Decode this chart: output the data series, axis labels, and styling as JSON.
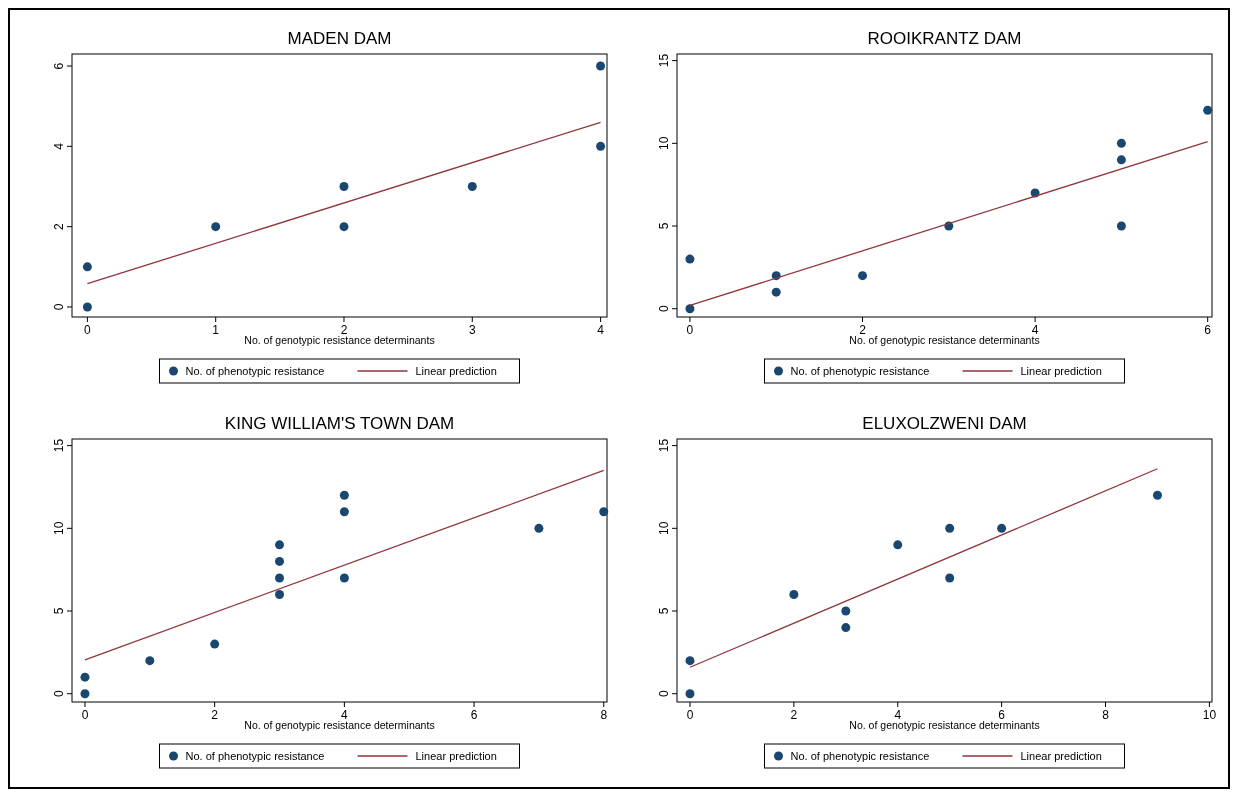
{
  "chart_data": [
    {
      "type": "scatter",
      "title": "MADEN DAM",
      "xlabel": "No. of genotypic resistance determinants",
      "xlim": [
        -0.12,
        4.05
      ],
      "ylim": [
        -0.25,
        6.3
      ],
      "xticks": [
        0,
        1,
        2,
        3,
        4
      ],
      "yticks": [
        0,
        2,
        4,
        6
      ],
      "legend": "bottom",
      "series": [
        {
          "name": "No. of phenotypic resistance",
          "marker": "circle",
          "color": "#1a476f",
          "x": [
            0,
            0,
            1,
            2,
            2,
            3,
            4,
            4
          ],
          "values": [
            0,
            1,
            2,
            3,
            2,
            3,
            6,
            4
          ]
        },
        {
          "name": "Linear prediction",
          "type": "line",
          "color": "#90353b",
          "x": [
            0,
            4
          ],
          "values": [
            0.58,
            4.6
          ]
        }
      ]
    },
    {
      "type": "scatter",
      "title": "ROOIKRANTZ DAM",
      "xlabel": "No. of genotypic resistance determinants",
      "xlim": [
        -0.15,
        6.05
      ],
      "ylim": [
        -0.5,
        15.4
      ],
      "xticks": [
        0,
        2,
        4,
        6
      ],
      "yticks": [
        0,
        5,
        10,
        15
      ],
      "legend": "bottom",
      "series": [
        {
          "name": "No. of phenotypic resistance",
          "marker": "circle",
          "color": "#1a476f",
          "x": [
            0,
            0,
            1,
            1,
            2,
            3,
            4,
            5,
            5,
            5,
            6
          ],
          "values": [
            0,
            3,
            2,
            1,
            2,
            5,
            7,
            10,
            9,
            5,
            12
          ]
        },
        {
          "name": "Linear prediction",
          "type": "line",
          "color": "#90353b",
          "x": [
            0,
            6
          ],
          "values": [
            0.2,
            10.1
          ]
        }
      ]
    },
    {
      "type": "scatter",
      "title": "KING WILLIAM'S TOWN DAM",
      "xlabel": "No. of genotypic resistance determinants",
      "xlim": [
        -0.2,
        8.05
      ],
      "ylim": [
        -0.5,
        15.4
      ],
      "xticks": [
        0,
        2,
        4,
        6,
        8
      ],
      "yticks": [
        0,
        5,
        10,
        15
      ],
      "legend": "bottom",
      "series": [
        {
          "name": "No. of phenotypic resistance",
          "marker": "circle",
          "color": "#1a476f",
          "x": [
            0,
            0,
            1,
            2,
            3,
            3,
            3,
            3,
            4,
            4,
            4,
            7,
            8
          ],
          "values": [
            0,
            1,
            2,
            3,
            9,
            8,
            7,
            6,
            12,
            11,
            7,
            10,
            11
          ]
        },
        {
          "name": "Linear prediction",
          "type": "line",
          "color": "#90353b",
          "x": [
            0,
            8
          ],
          "values": [
            2.05,
            13.5
          ]
        }
      ]
    },
    {
      "type": "scatter",
      "title": "ELUXOLZWENI DAM",
      "xlabel": "No. of genotypic resistance determinants",
      "xlim": [
        -0.25,
        10.05
      ],
      "ylim": [
        -0.5,
        15.4
      ],
      "xticks": [
        0,
        2,
        4,
        6,
        8,
        10
      ],
      "yticks": [
        0,
        5,
        10,
        15
      ],
      "legend": "bottom",
      "series": [
        {
          "name": "No. of phenotypic resistance",
          "marker": "circle",
          "color": "#1a476f",
          "x": [
            0,
            0,
            2,
            3,
            3,
            4,
            5,
            5,
            6,
            9
          ],
          "values": [
            0,
            2,
            6,
            5,
            4,
            9,
            10,
            7,
            10,
            12
          ]
        },
        {
          "name": "Linear prediction",
          "type": "line",
          "color": "#90353b",
          "x": [
            0,
            9
          ],
          "values": [
            1.6,
            13.6
          ]
        }
      ]
    }
  ]
}
